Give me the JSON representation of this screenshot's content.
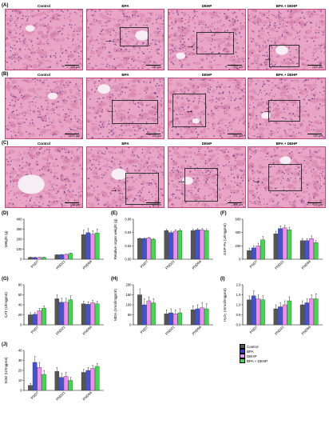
{
  "histology": {
    "rows": [
      {
        "tag": "(A)",
        "titles": [
          "Control",
          "BPA",
          "DEHP",
          "BPA + DEHP"
        ],
        "scale": [
          "100 μm",
          "100 μm",
          "100 μm",
          "100 μm"
        ]
      },
      {
        "tag": "(B)",
        "titles": [
          "Control",
          "BPA",
          "DEHP",
          "BPA + DEHP"
        ],
        "scale": [
          "100 μm",
          "100 μm",
          "100 μm",
          "100 μm"
        ]
      },
      {
        "tag": "(C)",
        "titles": [
          "Control",
          "BPA",
          "DEHP",
          "BPA + DEHP"
        ],
        "scale": [
          "100 μm",
          "100 μm",
          "100 μm",
          "100 μm"
        ]
      }
    ],
    "colors": {
      "tissue": "#e9a5c5",
      "stain": "#d27aa6",
      "nuclei": "#6a3f8f",
      "lumen": "#f7eef3"
    }
  },
  "legend": {
    "items": [
      "Control",
      "BPA",
      "DEHP",
      "BPA + DEHP"
    ],
    "colors": [
      "#555555",
      "#2e3fd1",
      "#f28cf0",
      "#3ddb4a"
    ]
  },
  "chart_data": [
    {
      "panel": "(D)",
      "type": "bar",
      "ylabel": "Weight (g)",
      "ylim": [
        0,
        400
      ],
      "ticks": [
        0,
        100,
        200,
        300,
        400
      ],
      "categories": [
        "PND7",
        "PND21",
        "PND56"
      ],
      "series": [
        {
          "name": "Control",
          "values": [
            18,
            44,
            245
          ]
        },
        {
          "name": "BPA",
          "values": [
            17,
            45,
            265
          ]
        },
        {
          "name": "DEHP",
          "values": [
            17,
            48,
            250
          ]
        },
        {
          "name": "BPA + DEHP",
          "values": [
            18,
            57,
            262
          ]
        }
      ],
      "errors": [
        [
          3,
          3,
          45
        ],
        [
          3,
          3,
          40
        ],
        [
          3,
          4,
          35
        ],
        [
          3,
          4,
          40
        ]
      ]
    },
    {
      "panel": "(E)",
      "type": "bar",
      "ylabel": "Relative organ weight (g)",
      "ylim": [
        0,
        0.06
      ],
      "ticks": [
        0.0,
        0.02,
        0.04,
        0.06
      ],
      "categories": [
        "PND7",
        "PND21",
        "PND56"
      ],
      "series": [
        {
          "name": "Control",
          "values": [
            0.031,
            0.043,
            0.043
          ]
        },
        {
          "name": "BPA",
          "values": [
            0.031,
            0.04,
            0.044
          ]
        },
        {
          "name": "DEHP",
          "values": [
            0.032,
            0.042,
            0.044
          ]
        },
        {
          "name": "BPA + DEHP",
          "values": [
            0.03,
            0.043,
            0.043
          ]
        }
      ],
      "errors": [
        [
          0.001,
          0.002,
          0.002
        ],
        [
          0.001,
          0.002,
          0.002
        ],
        [
          0.001,
          0.002,
          0.002
        ],
        [
          0.001,
          0.002,
          0.002
        ]
      ]
    },
    {
      "panel": "(F)",
      "type": "bar",
      "ylabel": "GSP-Px (U/mgprot)",
      "ylim": [
        0,
        600
      ],
      "ticks": [
        0,
        200,
        400,
        600
      ],
      "categories": [
        "PND7",
        "PND21",
        "PND56"
      ],
      "series": [
        {
          "name": "Control",
          "values": [
            130,
            380,
            280
          ]
        },
        {
          "name": "BPA",
          "values": [
            170,
            460,
            280
          ]
        },
        {
          "name": "DEHP",
          "values": [
            200,
            470,
            310
          ]
        },
        {
          "name": "BPA + DEHP",
          "values": [
            290,
            440,
            250
          ]
        }
      ],
      "errors": [
        [
          30,
          40,
          30
        ],
        [
          30,
          40,
          30
        ],
        [
          40,
          40,
          40
        ],
        [
          50,
          40,
          30
        ]
      ]
    },
    {
      "panel": "(G)",
      "type": "bar",
      "ylabel": "CAT (U/mgprot)",
      "ylim": [
        0,
        80
      ],
      "ticks": [
        0,
        20,
        40,
        60,
        80
      ],
      "categories": [
        "PND7",
        "PND21",
        "PND56"
      ],
      "series": [
        {
          "name": "Control",
          "values": [
            20,
            52,
            42
          ]
        },
        {
          "name": "BPA",
          "values": [
            21,
            45,
            41
          ]
        },
        {
          "name": "DEHP",
          "values": [
            28,
            45,
            44
          ]
        },
        {
          "name": "BPA + DEHP",
          "values": [
            33,
            50,
            42
          ]
        }
      ],
      "errors": [
        [
          4,
          8,
          5
        ],
        [
          4,
          8,
          5
        ],
        [
          5,
          8,
          5
        ],
        [
          5,
          8,
          5
        ]
      ]
    },
    {
      "panel": "(H)",
      "type": "bar",
      "ylabel": "MDA (nmol/mgprot)",
      "ylim": [
        0,
        200
      ],
      "ticks": [
        0,
        50,
        100,
        150,
        200
      ],
      "categories": [
        "PND7",
        "PND21",
        "PND56"
      ],
      "series": [
        {
          "name": "Control",
          "values": [
            150,
            55,
            75
          ]
        },
        {
          "name": "BPA",
          "values": [
            100,
            60,
            80
          ]
        },
        {
          "name": "DEHP",
          "values": [
            120,
            55,
            85
          ]
        },
        {
          "name": "BPA + DEHP",
          "values": [
            110,
            60,
            80
          ]
        }
      ],
      "errors": [
        [
          30,
          20,
          20
        ],
        [
          30,
          20,
          20
        ],
        [
          20,
          20,
          25
        ],
        [
          20,
          20,
          25
        ]
      ]
    },
    {
      "panel": "(I)",
      "type": "bar",
      "ylabel": "H₂O₂ (mmol/mgprot)",
      "ylim": [
        0,
        2.0
      ],
      "ticks": [
        0.0,
        0.5,
        1.0,
        1.5,
        2.0
      ],
      "categories": [
        "PND7",
        "PND21",
        "PND56"
      ],
      "series": [
        {
          "name": "Control",
          "values": [
            1.25,
            0.8,
            1.0
          ]
        },
        {
          "name": "BPA",
          "values": [
            1.45,
            0.9,
            1.1
          ]
        },
        {
          "name": "DEHP",
          "values": [
            1.3,
            1.0,
            1.3
          ]
        },
        {
          "name": "BPA + DEHP",
          "values": [
            1.25,
            1.2,
            1.3
          ]
        }
      ],
      "errors": [
        [
          0.2,
          0.2,
          0.2
        ],
        [
          0.25,
          0.2,
          0.2
        ],
        [
          0.2,
          0.2,
          0.2
        ],
        [
          0.2,
          0.2,
          0.25
        ]
      ]
    },
    {
      "panel": "(J)",
      "type": "bar",
      "ylabel": "SOD (U/mgprot)",
      "ylim": [
        0,
        40
      ],
      "ticks": [
        0,
        10,
        20,
        30,
        40
      ],
      "categories": [
        "PND7",
        "PND21",
        "PND56"
      ],
      "series": [
        {
          "name": "Control",
          "values": [
            5,
            19,
            18
          ]
        },
        {
          "name": "BPA",
          "values": [
            28,
            13,
            20
          ]
        },
        {
          "name": "DEHP",
          "values": [
            23,
            14,
            22
          ]
        },
        {
          "name": "BPA + DEHP",
          "values": [
            16,
            10,
            24
          ]
        }
      ],
      "errors": [
        [
          2,
          4,
          3
        ],
        [
          6,
          4,
          3
        ],
        [
          5,
          4,
          3
        ],
        [
          4,
          3,
          3
        ]
      ]
    }
  ]
}
